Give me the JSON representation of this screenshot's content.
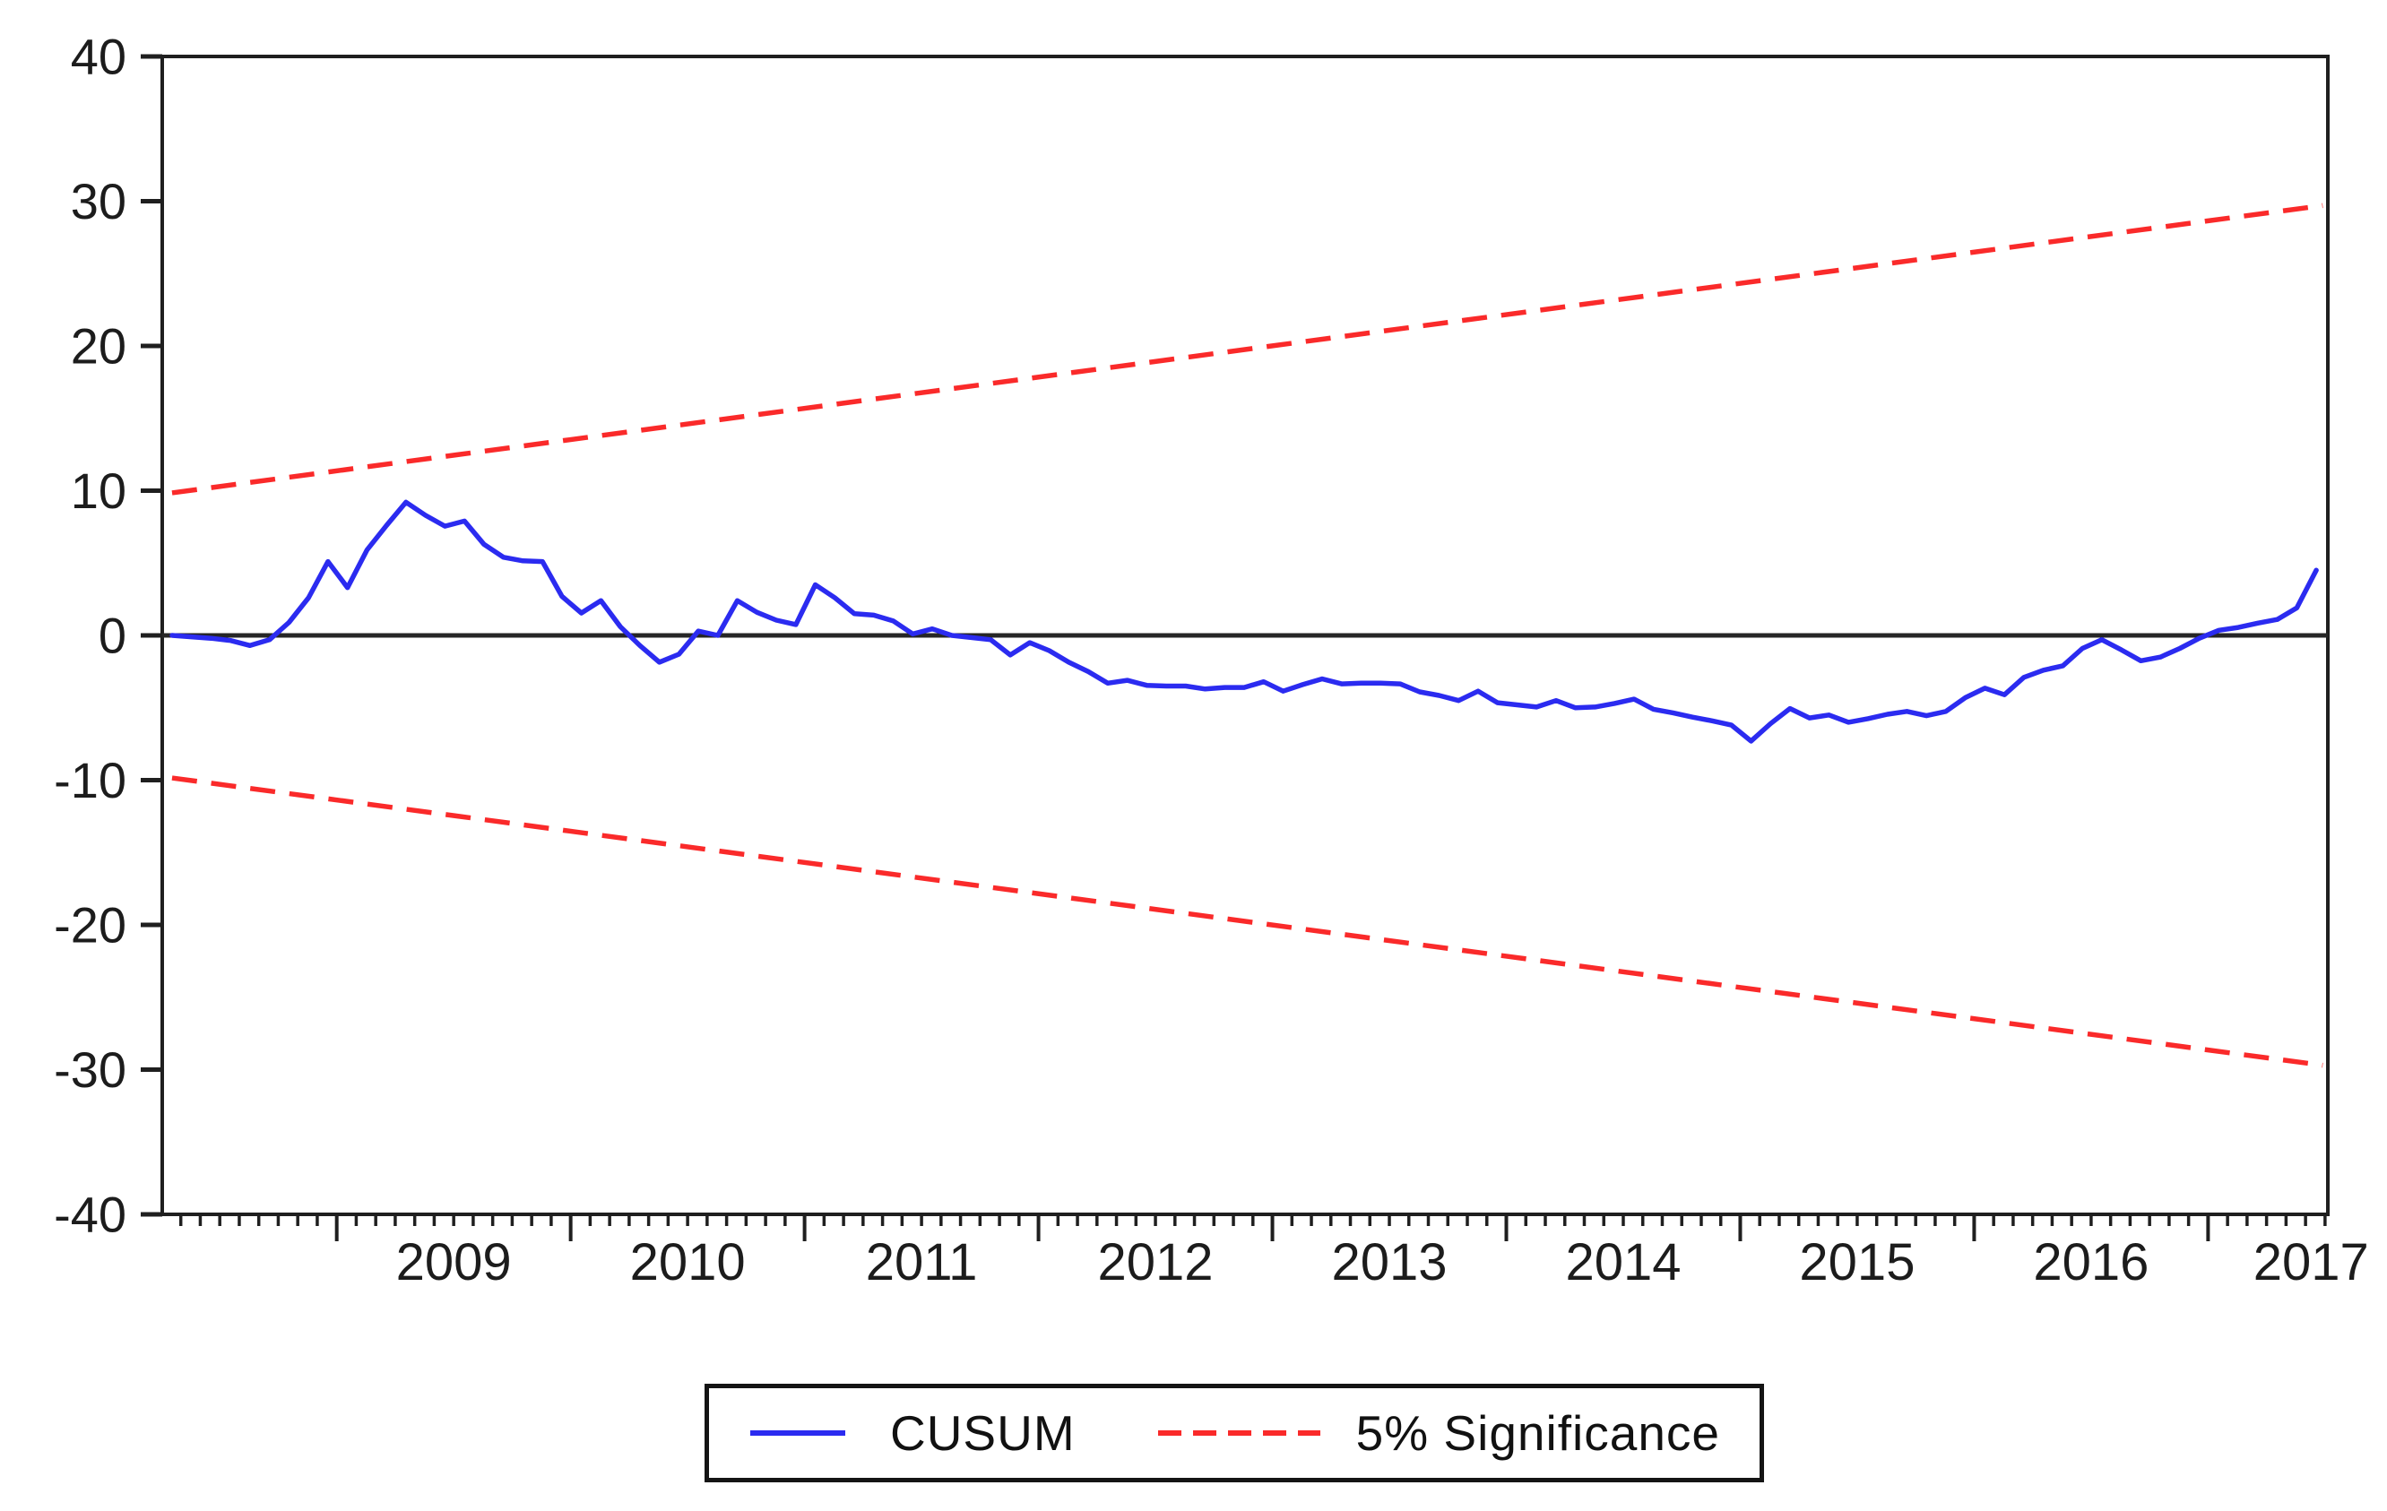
{
  "chart_data": {
    "type": "line",
    "title": "",
    "x_axis": {
      "range": [
        2008.254,
        2017.512
      ],
      "minor_tick_unit": "month",
      "major_tick_years": [
        2009,
        2010,
        2011,
        2012,
        2013,
        2014,
        2015,
        2016,
        2017
      ],
      "tick_labels": [
        "2009",
        "2010",
        "2011",
        "2012",
        "2013",
        "2014",
        "2015",
        "2016",
        "2017"
      ],
      "label_centers": [
        2009.5,
        2010.5,
        2011.5,
        2012.5,
        2013.5,
        2014.5,
        2015.5,
        2016.5,
        2017.44
      ]
    },
    "y_axis": {
      "range": [
        -40,
        40
      ],
      "ticks": [
        40,
        30,
        20,
        10,
        0,
        -10,
        -20,
        -30,
        -40
      ],
      "tick_labels": [
        "40",
        "30",
        "20",
        "10",
        "0",
        "-10",
        "-20",
        "-30",
        "-40"
      ]
    },
    "grid": "off",
    "zero_line": 0,
    "series": [
      {
        "name": "CUSUM",
        "type": "line",
        "style": "solid",
        "color": "#2b2bf0",
        "x_start": 2008.296,
        "x_step": 0.083333,
        "values": [
          0.0,
          -0.1,
          -0.2,
          -0.35,
          -0.7,
          -0.3,
          0.9,
          2.6,
          5.1,
          3.3,
          5.9,
          7.6,
          9.2,
          8.3,
          7.55,
          7.9,
          6.3,
          5.4,
          5.15,
          5.1,
          2.7,
          1.55,
          2.4,
          0.6,
          -0.7,
          -1.85,
          -1.3,
          0.3,
          0.0,
          2.4,
          1.6,
          1.05,
          0.75,
          3.5,
          2.6,
          1.5,
          1.4,
          1.0,
          0.1,
          0.45,
          0.0,
          -0.15,
          -0.3,
          -1.35,
          -0.5,
          -1.05,
          -1.85,
          -2.5,
          -3.3,
          -3.1,
          -3.45,
          -3.5,
          -3.5,
          -3.7,
          -3.6,
          -3.6,
          -3.2,
          -3.85,
          -3.4,
          -3.0,
          -3.35,
          -3.3,
          -3.3,
          -3.35,
          -3.9,
          -4.15,
          -4.5,
          -3.85,
          -4.65,
          -4.8,
          -4.95,
          -4.5,
          -5.0,
          -4.95,
          -4.7,
          -4.4,
          -5.1,
          -5.35,
          -5.65,
          -5.9,
          -6.2,
          -7.3,
          -6.1,
          -5.05,
          -5.7,
          -5.5,
          -6.0,
          -5.75,
          -5.45,
          -5.25,
          -5.55,
          -5.25,
          -4.3,
          -3.65,
          -4.1,
          -2.9,
          -2.4,
          -2.1,
          -0.9,
          -0.3,
          -1.0,
          -1.75,
          -1.5,
          -0.9,
          -0.2,
          0.35,
          0.55,
          0.85,
          1.1,
          1.9,
          4.5
        ]
      },
      {
        "name": "5% Significance upper bound",
        "type": "line",
        "style": "dashed",
        "color": "#fa2a2a",
        "points": [
          [
            2008.296,
            9.85
          ],
          [
            2017.49,
            29.7
          ]
        ]
      },
      {
        "name": "5% Significance lower bound",
        "type": "line",
        "style": "dashed",
        "color": "#fa2a2a",
        "points": [
          [
            2008.296,
            -9.85
          ],
          [
            2017.49,
            -29.7
          ]
        ]
      }
    ],
    "legend": {
      "position": "bottom-center",
      "entries": [
        {
          "label": "CUSUM",
          "color": "#2b2bf0",
          "style": "solid"
        },
        {
          "label": "5% Significance",
          "color": "#fa2a2a",
          "style": "dashed"
        }
      ]
    },
    "colors": {
      "axis": "#1f1f1f",
      "background": "#ffffff",
      "cusum_line": "#2b2bf0",
      "significance_line": "#fa2a2a"
    }
  }
}
